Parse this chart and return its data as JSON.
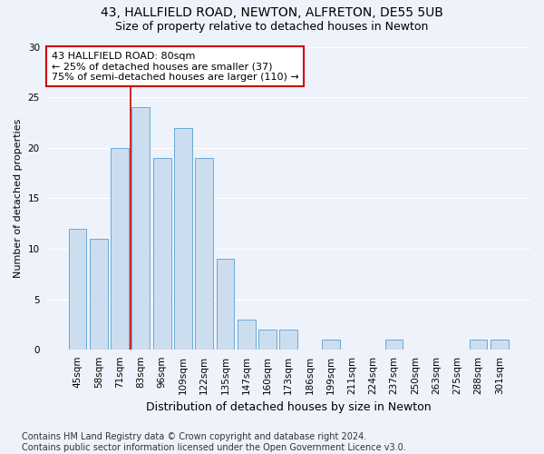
{
  "title_line1": "43, HALLFIELD ROAD, NEWTON, ALFRETON, DE55 5UB",
  "title_line2": "Size of property relative to detached houses in Newton",
  "xlabel": "Distribution of detached houses by size in Newton",
  "ylabel": "Number of detached properties",
  "categories": [
    "45sqm",
    "58sqm",
    "71sqm",
    "83sqm",
    "96sqm",
    "109sqm",
    "122sqm",
    "135sqm",
    "147sqm",
    "160sqm",
    "173sqm",
    "186sqm",
    "199sqm",
    "211sqm",
    "224sqm",
    "237sqm",
    "250sqm",
    "263sqm",
    "275sqm",
    "288sqm",
    "301sqm"
  ],
  "values": [
    12,
    11,
    20,
    24,
    19,
    22,
    19,
    9,
    3,
    2,
    2,
    0,
    1,
    0,
    0,
    1,
    0,
    0,
    0,
    1,
    1
  ],
  "bar_color": "#ccddf0",
  "bar_edge_color": "#6aaad4",
  "annotation_box_text": "43 HALLFIELD ROAD: 80sqm\n← 25% of detached houses are smaller (37)\n75% of semi-detached houses are larger (110) →",
  "annotation_box_color": "#ffffff",
  "annotation_box_edge_color": "#cc0000",
  "vline_bin_index": 2,
  "vline_color": "#cc0000",
  "ylim": [
    0,
    30
  ],
  "yticks": [
    0,
    5,
    10,
    15,
    20,
    25,
    30
  ],
  "background_color": "#eef2fa",
  "grid_color": "#ffffff",
  "footnote": "Contains HM Land Registry data © Crown copyright and database right 2024.\nContains public sector information licensed under the Open Government Licence v3.0.",
  "title_fontsize": 10,
  "subtitle_fontsize": 9,
  "xlabel_fontsize": 9,
  "ylabel_fontsize": 8,
  "tick_fontsize": 7.5,
  "footnote_fontsize": 7,
  "annot_fontsize": 8
}
